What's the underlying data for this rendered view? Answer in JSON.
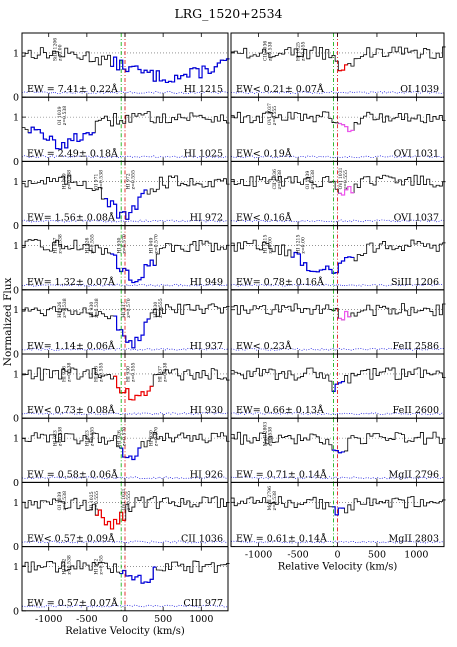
{
  "title": "LRG_1520+2534",
  "ylabel": "Normalized Flux",
  "xlabel": "Relative Velocity (km/s)",
  "chart_data": {
    "type": "line",
    "title": "LRG_1520+2534",
    "xlabel": "Relative Velocity (km/s)",
    "ylabel": "Normalized Flux",
    "xlim": [
      -1350,
      1350
    ],
    "ylim": [
      0,
      1.45
    ],
    "x_ticks": [
      "-1000",
      "-500",
      "0",
      "500",
      "1000"
    ],
    "x_tick_values": [
      -1000,
      -500,
      0,
      500,
      1000
    ],
    "y_ticks": [
      "0",
      "1"
    ],
    "y_tick_values": [
      0,
      1
    ],
    "reference_lines": {
      "green_dashdot": -50,
      "red_dashdot": 0,
      "continuum": 1
    },
    "colors": {
      "spectrum": "#000000",
      "detected": "#0000dd",
      "saturated": "#ee0000",
      "blended": "#ee55ee",
      "error": "#0000dd",
      "green_line": "#00aa00",
      "red_line": "#dd0000"
    },
    "panels": [
      {
        "id": "HI 1215",
        "label": "HI 1215",
        "ew_text": "EW = 7.41± 0.22Å",
        "column": 0,
        "row": 0,
        "highlight": "detected",
        "hl_range": [
          -200,
          1350
        ],
        "depth": 0.55,
        "x_axis": false,
        "annotations": [
          "SiIII 1206\nz=0.00"
        ]
      },
      {
        "id": "HI 1025",
        "label": "HI 1025",
        "ew_text": "EW = 2.49± 0.18Å",
        "column": 0,
        "row": 1,
        "highlight": "detected",
        "hl_range": [
          -1300,
          -400
        ],
        "depth": 0.6,
        "x_axis": false,
        "annotations": [
          "OI 1039\nz=0.538"
        ]
      },
      {
        "id": "HI 972",
        "label": "HI 972",
        "ew_text": "EW= 1.56± 0.08Å",
        "column": 0,
        "row": 2,
        "highlight": "detected",
        "hl_range": [
          -300,
          250
        ],
        "depth": 0.8,
        "x_axis": false,
        "annotations": [
          "HI 949\nz=0.538",
          "OI 971\nz=0.538",
          "HI 972\nz=0.555"
        ]
      },
      {
        "id": "HI 949",
        "label": "HI 949",
        "ew_text": "EW= 1.32± 0.07Å",
        "column": 0,
        "row": 3,
        "highlight": "detected",
        "hl_range": [
          -200,
          400
        ],
        "depth": 0.7,
        "x_axis": false,
        "annotations": [
          "HI 927\nz=0.538",
          "HI 926\nz=0.555",
          "HI 930\nz=0.570",
          "HI 949\nz=0.570"
        ]
      },
      {
        "id": "HI 937",
        "label": "HI 937",
        "ew_text": "EW= 1.14± 0.06Å",
        "column": 0,
        "row": 4,
        "highlight": "detected",
        "hl_range": [
          -150,
          300
        ],
        "depth": 0.75,
        "x_axis": false,
        "annotations": [
          "HI 926\nz=0.538",
          "HI 930\nz=0.538",
          "HI 937\nz=0.570",
          "HI 930\nz=0.555"
        ]
      },
      {
        "id": "HI 930",
        "label": "HI 930",
        "ew_text": "EW< 0.73± 0.08Å",
        "column": 0,
        "row": 5,
        "highlight": "saturated",
        "hl_range": [
          -150,
          350
        ],
        "depth": 0.5,
        "x_axis": false,
        "annotations": [
          "HI 926\nz=0.538",
          "HI 926\nz=0.555",
          "HI 930\nz=0.555",
          "HI 937\nz=0.538"
        ]
      },
      {
        "id": "HI 926",
        "label": "HI 926",
        "ew_text": "EW = 0.58± 0.06Å",
        "column": 0,
        "row": 6,
        "highlight": "detected",
        "hl_range": [
          -100,
          200
        ],
        "depth": 0.45,
        "x_axis": false,
        "annotations": [
          "HI 923\nz=0.538",
          "HI 923\nz=0.555",
          "HI 926\nz=0.570",
          "HI 930\nz=0.570"
        ]
      },
      {
        "id": "CII 1036",
        "label": "CII 1036",
        "ew_text": "EW< 0.57± 0.09Å",
        "column": 0,
        "row": 7,
        "highlight": "saturated",
        "hl_range": [
          -400,
          0
        ],
        "depth": 0.55,
        "x_axis": false,
        "annotations": [
          "OI 1039\nz=0.538",
          "HI 1025\nz=0.555",
          "OVI 1031\nz=0.555"
        ]
      },
      {
        "id": "CIII 977",
        "label": "CIII 977",
        "ew_text": "EW = 0.57± 0.07Å",
        "column": 0,
        "row": 8,
        "highlight": "detected",
        "hl_range": [
          -100,
          400
        ],
        "depth": 0.3,
        "x_axis": true,
        "annotations": [
          "HI 972\nz=0.538",
          "HI 972\nz=0.555"
        ]
      },
      {
        "id": "OI 1039",
        "label": "OI 1039",
        "ew_text": "EW< 0.21± 0.07Å",
        "column": 1,
        "row": 0,
        "highlight": "saturated",
        "hl_range": [
          0,
          100
        ],
        "depth": 0.3,
        "x_axis": false,
        "annotations": [
          "CII 1036\nz=0.538",
          "HI 1025\nz=0.555"
        ]
      },
      {
        "id": "OVI 1031",
        "label": "OVI 1031",
        "ew_text": "EW< 0.19Å",
        "column": 1,
        "row": 1,
        "highlight": "blended",
        "hl_range": [
          0,
          200
        ],
        "depth": 0.25,
        "x_axis": false,
        "annotations": [
          "OVI 1037\nz=0.555"
        ]
      },
      {
        "id": "OVI 1037",
        "label": "OVI 1037",
        "ew_text": "EW< 0.16Å",
        "column": 1,
        "row": 2,
        "highlight": "blended",
        "hl_range": [
          0,
          200
        ],
        "depth": 0.25,
        "x_axis": false,
        "annotations": [
          "CII 1036\nz=0.538",
          "OI 1039\nz=0.538",
          "OVI 1031\nz=0.555"
        ]
      },
      {
        "id": "SiIII 1206",
        "label": "SiIII 1206",
        "ew_text": "EW= 0.78± 0.16Å",
        "column": 1,
        "row": 3,
        "highlight": "detected",
        "hl_range": [
          -600,
          200
        ],
        "depth": 0.6,
        "x_axis": false,
        "annotations": [
          "HI 1215\nz=0.00",
          "HI 1215\nz=0.00"
        ]
      },
      {
        "id": "FeII 2586",
        "label": "FeII 2586",
        "ew_text": "EW< 0.23Å",
        "column": 1,
        "row": 4,
        "highlight": "blended",
        "hl_range": [
          0,
          150
        ],
        "depth": 0.15,
        "x_axis": false,
        "annotations": []
      },
      {
        "id": "FeII 2600",
        "label": "FeII 2600",
        "ew_text": "EW= 0.66± 0.13Å",
        "column": 1,
        "row": 5,
        "highlight": "detected",
        "hl_range": [
          -100,
          50
        ],
        "depth": 0.3,
        "x_axis": false,
        "annotations": []
      },
      {
        "id": "MgII 2796",
        "label": "MgII 2796",
        "ew_text": "EW =  0.71± 0.14Å",
        "column": 1,
        "row": 6,
        "highlight": "detected",
        "hl_range": [
          -100,
          50
        ],
        "depth": 0.3,
        "x_axis": false,
        "annotations": [
          "MgII 2803\nz=0.538"
        ]
      },
      {
        "id": "MgII 2803",
        "label": "MgII 2803",
        "ew_text": "EW =  0.61± 0.14Å",
        "column": 1,
        "row": 7,
        "highlight": "detected",
        "hl_range": [
          -100,
          50
        ],
        "depth": 0.25,
        "x_axis": true,
        "annotations": [
          "MgII 2796\nz=0.538"
        ]
      }
    ]
  }
}
